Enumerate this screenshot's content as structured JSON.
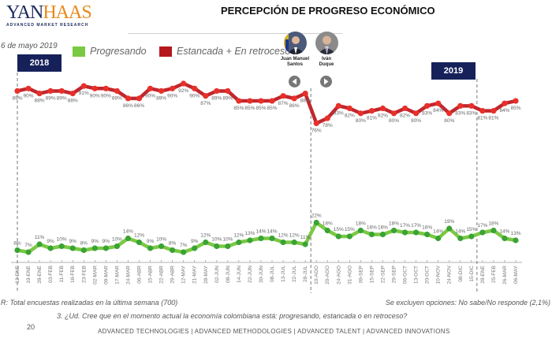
{
  "logo": {
    "main_left": "YAN",
    "main_right": "HAAS",
    "sub": "ADVANCED MARKET RESEARCH"
  },
  "title": "PERCEPCIÓN DE PROGRESO ECONÓMICO",
  "date": "6 de mayo 2019",
  "year_labels": [
    "2018",
    "2019"
  ],
  "presidents": [
    {
      "name_line1": "Juan Manuel",
      "name_line2": "Santos",
      "icon": "prev-arrow-icon"
    },
    {
      "name_line1": "Iván",
      "name_line2": "Duque",
      "icon": "next-arrow-icon"
    }
  ],
  "colors": {
    "progresando": "#7ac943",
    "progresando_marker": "#3aa335",
    "estancada": "#c1272d",
    "estancada_marker": "#e8302a",
    "year_box": "#16215a"
  },
  "footer": {
    "base": "R: Total encuestas realizadas en la última semana (700)",
    "excluded": "Se excluyen opciones: No sabe/No responde (2,1%)",
    "question": "3. ¿Ud. Cree que en el momento actual la economía colombiana está: progresando, estancada o en retroceso?",
    "page_number": "20",
    "tagline": "ADVANCED TECHNOLOGIES  |  ADVANCED METHODOLOGIES  |  ADVANCED TALENT  |  ADVANCED INNOVATIONS"
  },
  "chart_data": {
    "type": "line",
    "title": "PERCEPCIÓN DE PROGRESO ECONÓMICO",
    "xlabel": "",
    "ylabel": "",
    "unit": "%",
    "grid": false,
    "legend_position": "top",
    "categories": [
      "12-ENE",
      "19-ENE",
      "28-ENE",
      "03-FEB",
      "11-FEB",
      "18-FEB",
      "23-FEB",
      "02-MAR",
      "09-MAR",
      "17-MAR",
      "24-MAR",
      "06-ABR",
      "15-ABR",
      "22-ABR",
      "29-ABR",
      "12-MAY",
      "21-MAY",
      "28-MAY",
      "02-JUN",
      "08-JUN",
      "14-JUN",
      "22-JUN",
      "30-JUN",
      "08-JUL",
      "13-JUL",
      "22-JUL",
      "28-JUL",
      "10-AGO",
      "20-AGO",
      "24-AGO",
      "31-AGO",
      "09-SEP",
      "15-SEP",
      "22-SEP",
      "29-SEP",
      "06-OCT",
      "13-OCT",
      "20-OCT",
      "10-NOV",
      "24-NOV",
      "08-DIC",
      "15-DIC",
      "28-ENE",
      "25-FEB",
      "26-MAR",
      "06-MAY"
    ],
    "series": [
      {
        "name": "Progresando",
        "values": [
          8,
          7,
          11,
          9,
          10,
          9,
          8,
          9,
          9,
          10,
          14,
          12,
          9,
          10,
          8,
          7,
          9,
          12,
          10,
          10,
          12,
          13,
          14,
          14,
          12,
          12,
          11,
          22,
          18,
          15,
          15,
          18,
          16,
          16,
          18,
          17,
          17,
          16,
          14,
          19,
          14,
          15,
          17,
          18,
          14,
          13
        ]
      },
      {
        "name": "Estancada + En retroceso",
        "values": [
          89,
          90,
          88,
          89,
          89,
          88,
          91,
          90,
          90,
          89,
          86,
          86,
          90,
          89,
          90,
          92,
          90,
          87,
          89,
          89,
          85,
          85,
          85,
          85,
          87,
          86,
          88,
          76,
          78,
          83,
          82,
          80,
          81,
          82,
          80,
          82,
          80,
          83,
          84,
          80,
          83,
          83,
          81,
          81,
          84,
          85
        ]
      }
    ],
    "annotations": [
      {
        "text": "2018",
        "at": "12-ENE"
      },
      {
        "text": "Juan Manuel Santos",
        "period_end": "28-JUL"
      },
      {
        "text": "Iván Duque",
        "period_start": "10-AGO"
      },
      {
        "text": "2019",
        "at": "28-ENE"
      }
    ]
  }
}
